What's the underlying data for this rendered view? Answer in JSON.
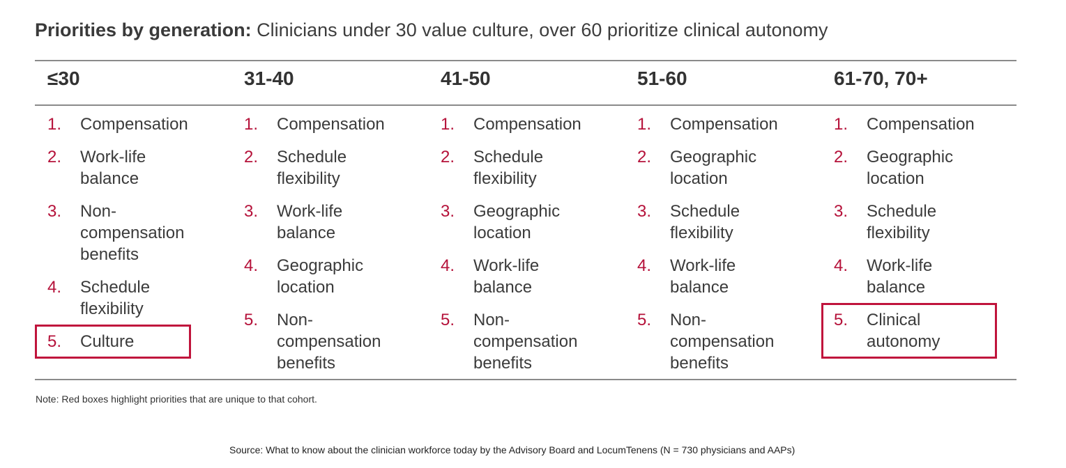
{
  "title": {
    "bold": "Priorities by generation:",
    "rest": " Clinicians under 30 value culture, over 60 prioritize clinical autonomy"
  },
  "columns": [
    {
      "header": "≤30",
      "items": [
        {
          "num": "1.",
          "lines": [
            "Compensation"
          ]
        },
        {
          "num": "2.",
          "lines": [
            "Work-life",
            "balance"
          ]
        },
        {
          "num": "3.",
          "lines": [
            "Non-",
            "compensation",
            "benefits"
          ]
        },
        {
          "num": "4.",
          "lines": [
            "Schedule",
            "flexibility"
          ]
        },
        {
          "num": "5.",
          "lines": [
            "Culture"
          ],
          "highlight": true
        }
      ]
    },
    {
      "header": "31-40",
      "items": [
        {
          "num": "1.",
          "lines": [
            "Compensation"
          ]
        },
        {
          "num": "2.",
          "lines": [
            "Schedule",
            "flexibility"
          ]
        },
        {
          "num": "3.",
          "lines": [
            "Work-life",
            "balance"
          ]
        },
        {
          "num": "4.",
          "lines": [
            "Geographic",
            "location"
          ]
        },
        {
          "num": "5.",
          "lines": [
            "Non-",
            "compensation",
            "benefits"
          ]
        }
      ]
    },
    {
      "header": "41-50",
      "items": [
        {
          "num": "1.",
          "lines": [
            "Compensation"
          ]
        },
        {
          "num": "2.",
          "lines": [
            "Schedule",
            "flexibility"
          ]
        },
        {
          "num": "3.",
          "lines": [
            "Geographic",
            "location"
          ]
        },
        {
          "num": "4.",
          "lines": [
            "Work-life",
            "balance"
          ]
        },
        {
          "num": "5.",
          "lines": [
            "Non-",
            "compensation",
            "benefits"
          ]
        }
      ]
    },
    {
      "header": "51-60",
      "items": [
        {
          "num": "1.",
          "lines": [
            "Compensation"
          ]
        },
        {
          "num": "2.",
          "lines": [
            "Geographic",
            "location"
          ]
        },
        {
          "num": "3.",
          "lines": [
            "Schedule",
            "flexibility"
          ]
        },
        {
          "num": "4.",
          "lines": [
            "Work-life",
            "balance"
          ]
        },
        {
          "num": "5.",
          "lines": [
            "Non-",
            "compensation",
            "benefits"
          ]
        }
      ]
    },
    {
      "header": "61-70, 70+",
      "items": [
        {
          "num": "1.",
          "lines": [
            "Compensation"
          ]
        },
        {
          "num": "2.",
          "lines": [
            "Geographic",
            "location"
          ]
        },
        {
          "num": "3.",
          "lines": [
            "Schedule",
            "flexibility"
          ]
        },
        {
          "num": "4.",
          "lines": [
            "Work-life",
            "balance"
          ]
        },
        {
          "num": "5.",
          "lines": [
            "Clinical",
            "autonomy"
          ],
          "highlight": true
        }
      ]
    }
  ],
  "note": "Note: Red boxes highlight priorities that are unique to that cohort.",
  "source": "Source: What to know about the clinician workforce today by the Advisory Board and LocumTenens (N = 730 physicians and AAPs)",
  "colors": {
    "number": "#b5123a",
    "highlight_border": "#c0143c",
    "rule": "#8a8a8a"
  }
}
